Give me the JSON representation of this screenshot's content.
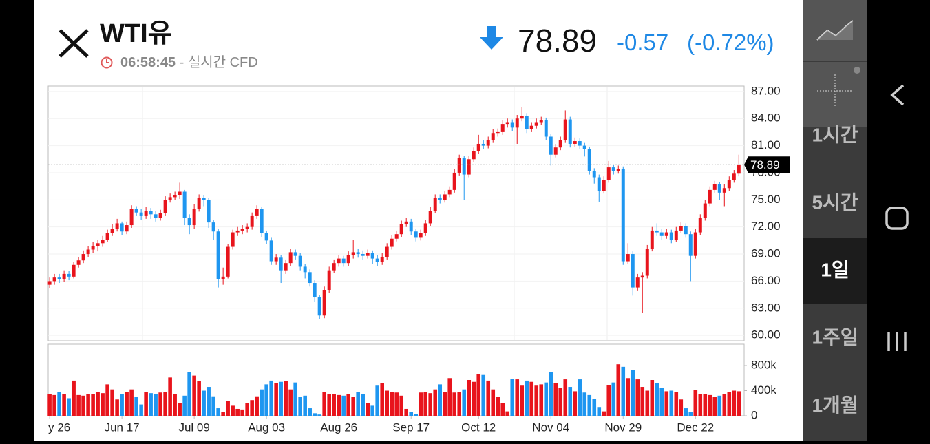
{
  "header": {
    "symbol": "WTI유",
    "time": "06:58:45",
    "session": "- 실시간 CFD",
    "price": "78.89",
    "change": "-0.57",
    "change_pct": "(-0.72%)"
  },
  "timeframes": [
    "1시간",
    "5시간",
    "1일",
    "1주일",
    "1개월"
  ],
  "selected_timeframe": 2,
  "chart_data": {
    "type": "candlestick",
    "up_color": "#e8141c",
    "down_color": "#1e96f0",
    "ylim": [
      59.4,
      87.6
    ],
    "yticks": [
      {
        "value": 60,
        "label": "60.00"
      },
      {
        "value": 63,
        "label": "63.00"
      },
      {
        "value": 66,
        "label": "66.00"
      },
      {
        "value": 69,
        "label": "69.00"
      },
      {
        "value": 72,
        "label": "72.00"
      },
      {
        "value": 75,
        "label": "75.00"
      },
      {
        "value": 78,
        "label": "78.00"
      },
      {
        "value": 81,
        "label": "81.00"
      },
      {
        "value": 84,
        "label": "84.00"
      },
      {
        "value": 87,
        "label": "87.00"
      }
    ],
    "xlim": [
      -0.3,
      144.1
    ],
    "xticks": [
      {
        "value": 0,
        "label": "y 26"
      },
      {
        "value": 15,
        "label": "Jun 17"
      },
      {
        "value": 30,
        "label": "Jul 09"
      },
      {
        "value": 45,
        "label": "Aug 03"
      },
      {
        "value": 60,
        "label": "Aug 26"
      },
      {
        "value": 75,
        "label": "Sep 17"
      },
      {
        "value": 89,
        "label": "Oct 12"
      },
      {
        "value": 104,
        "label": "Nov 04"
      },
      {
        "value": 119,
        "label": "Nov 29"
      },
      {
        "value": 134,
        "label": "Dec 22"
      }
    ],
    "open": [
      65.6,
      66.0,
      66.4,
      66.2,
      66.8,
      66.5,
      67.8,
      68.3,
      69.0,
      69.5,
      69.9,
      70.2,
      70.6,
      71.3,
      71.8,
      72.4,
      71.5,
      72.2,
      74.0,
      73.6,
      73.2,
      73.8,
      73.4,
      73.0,
      73.5,
      75.0,
      75.3,
      75.5,
      75.9,
      73.0,
      72.2,
      74.0,
      75.2,
      75.0,
      72.5,
      71.5,
      66.2,
      66.5,
      69.8,
      71.4,
      71.6,
      71.8,
      72.0,
      73.2,
      74.0,
      71.3,
      70.5,
      68.2,
      68.6,
      67.2,
      68.0,
      69.2,
      68.8,
      67.6,
      67.0,
      65.8,
      64.2,
      62.2,
      65.0,
      67.2,
      68.0,
      68.5,
      68.0,
      68.9,
      69.2,
      69.0,
      68.8,
      69.1,
      68.5,
      68.1,
      68.7,
      69.8,
      70.7,
      71.2,
      72.3,
      72.6,
      71.5,
      70.8,
      71.3,
      72.4,
      73.8,
      75.2,
      75.0,
      75.6,
      76.1,
      78.0,
      79.6,
      77.8,
      79.5,
      80.4,
      81.2,
      81.0,
      81.6,
      82.4,
      82.5,
      83.4,
      83.6,
      83.0,
      84.0,
      84.3,
      82.8,
      83.2,
      83.6,
      83.8,
      82.0,
      80.0,
      80.8,
      81.6,
      83.9,
      81.2,
      81.5,
      81.0,
      80.6,
      78.2,
      77.5,
      76.0,
      77.2,
      78.6,
      78.2,
      78.4,
      68.2,
      69.0,
      65.3,
      66.4,
      66.6,
      69.6,
      71.6,
      71.4,
      71.0,
      71.4,
      70.6,
      71.6,
      72.1,
      71.2,
      68.8,
      71.4,
      73.0,
      74.6,
      76.1,
      76.7,
      75.8,
      76.3,
      77.2,
      77.9
    ],
    "high": [
      66.4,
      66.8,
      66.8,
      67.2,
      67.1,
      68.1,
      68.7,
      69.4,
      69.9,
      70.3,
      70.6,
      71.0,
      71.7,
      72.3,
      72.9,
      72.6,
      72.6,
      74.4,
      74.3,
      74.0,
      74.2,
      74.1,
      73.8,
      73.9,
      75.4,
      75.7,
      75.9,
      76.9,
      76.1,
      73.4,
      74.5,
      75.6,
      75.5,
      75.2,
      72.8,
      71.8,
      67.5,
      70.1,
      71.7,
      72.0,
      72.2,
      72.4,
      73.6,
      74.4,
      74.2,
      71.6,
      70.8,
      69.0,
      68.9,
      68.4,
      69.6,
      69.5,
      69.1,
      67.9,
      67.3,
      66.1,
      64.5,
      65.4,
      67.6,
      68.4,
      68.9,
      68.8,
      69.3,
      70.6,
      69.6,
      69.4,
      69.5,
      69.4,
      68.9,
      69.1,
      70.2,
      71.1,
      71.6,
      72.7,
      73.0,
      72.9,
      71.8,
      71.7,
      72.8,
      74.2,
      75.6,
      75.6,
      76.0,
      76.5,
      78.4,
      80.0,
      79.9,
      79.9,
      80.8,
      82.2,
      81.6,
      82.0,
      82.8,
      82.9,
      83.8,
      84.0,
      83.9,
      84.4,
      85.3,
      84.6,
      83.6,
      84.0,
      84.2,
      84.1,
      82.3,
      81.2,
      82.0,
      84.9,
      84.2,
      81.9,
      81.8,
      81.3,
      80.9,
      78.5,
      77.8,
      77.6,
      79.3,
      78.9,
      78.8,
      78.7,
      70.2,
      69.3,
      66.8,
      67.0,
      70.0,
      72.0,
      72.4,
      71.8,
      71.8,
      71.7,
      72.0,
      72.5,
      72.4,
      71.5,
      71.8,
      73.4,
      75.0,
      76.5,
      77.1,
      77.0,
      76.7,
      77.6,
      78.3,
      80.0
    ],
    "low": [
      65.2,
      65.6,
      65.8,
      65.9,
      66.1,
      66.3,
      67.5,
      68.0,
      68.7,
      69.1,
      69.3,
      69.8,
      70.3,
      71.0,
      71.5,
      71.1,
      71.2,
      71.9,
      73.2,
      72.8,
      72.9,
      72.9,
      72.6,
      72.7,
      73.2,
      74.7,
      75.0,
      75.1,
      72.2,
      71.2,
      71.8,
      73.7,
      74.3,
      71.9,
      70.6,
      65.3,
      65.6,
      66.3,
      69.5,
      71.0,
      71.2,
      71.4,
      71.7,
      72.9,
      70.9,
      70.1,
      67.8,
      67.8,
      65.8,
      66.8,
      67.7,
      68.4,
      67.2,
      66.3,
      65.4,
      63.7,
      61.8,
      61.9,
      64.7,
      66.9,
      67.6,
      67.6,
      67.7,
      68.5,
      68.6,
      68.4,
      68.5,
      67.9,
      67.7,
      67.8,
      68.4,
      69.5,
      70.4,
      70.9,
      72.0,
      71.1,
      70.4,
      70.5,
      71.0,
      72.1,
      73.5,
      74.6,
      74.7,
      75.3,
      75.8,
      77.7,
      75.0,
      77.5,
      79.2,
      80.1,
      80.6,
      80.7,
      81.3,
      82.0,
      82.2,
      83.0,
      82.6,
      81.2,
      83.7,
      82.4,
      82.5,
      82.9,
      83.3,
      81.6,
      78.8,
      79.7,
      80.5,
      81.3,
      80.8,
      80.9,
      80.6,
      79.8,
      77.8,
      76.8,
      74.8,
      75.7,
      76.9,
      77.8,
      77.9,
      67.8,
      67.9,
      64.4,
      64.9,
      62.5,
      66.3,
      69.3,
      71.0,
      70.6,
      70.7,
      70.2,
      70.3,
      71.3,
      70.8,
      66.0,
      68.5,
      71.1,
      72.7,
      74.3,
      75.8,
      75.0,
      74.3,
      76.0,
      76.9,
      77.6
    ],
    "close": [
      66.0,
      66.4,
      66.2,
      66.8,
      66.5,
      67.8,
      68.3,
      69.0,
      69.5,
      69.9,
      70.2,
      70.6,
      71.3,
      71.8,
      72.4,
      71.5,
      72.2,
      74.0,
      73.6,
      73.2,
      73.8,
      73.4,
      73.0,
      73.5,
      75.0,
      75.3,
      75.5,
      75.9,
      73.0,
      72.2,
      74.0,
      75.2,
      75.0,
      72.5,
      71.5,
      66.2,
      66.5,
      69.8,
      71.4,
      71.6,
      71.8,
      72.0,
      73.2,
      74.0,
      71.3,
      70.5,
      68.2,
      68.6,
      67.2,
      68.0,
      69.2,
      68.8,
      67.6,
      67.0,
      65.8,
      64.2,
      62.2,
      65.0,
      67.2,
      68.0,
      68.5,
      68.0,
      68.9,
      69.2,
      69.0,
      68.8,
      69.1,
      68.5,
      68.1,
      68.7,
      69.8,
      70.7,
      71.2,
      72.3,
      72.6,
      71.5,
      70.8,
      71.3,
      72.4,
      73.8,
      75.2,
      75.0,
      75.6,
      76.1,
      78.0,
      79.6,
      77.8,
      79.5,
      80.4,
      81.2,
      81.0,
      81.6,
      82.4,
      82.5,
      83.4,
      83.6,
      83.0,
      84.0,
      84.3,
      82.8,
      83.2,
      83.6,
      83.8,
      82.0,
      80.0,
      80.8,
      81.6,
      83.9,
      81.2,
      81.5,
      81.0,
      80.6,
      78.2,
      77.5,
      76.0,
      77.2,
      78.6,
      78.2,
      78.4,
      68.2,
      69.0,
      65.3,
      66.4,
      66.6,
      69.6,
      71.6,
      71.4,
      71.0,
      71.4,
      70.6,
      71.6,
      72.1,
      71.2,
      68.8,
      71.4,
      73.0,
      74.6,
      76.1,
      76.7,
      75.8,
      76.3,
      77.2,
      77.9,
      78.89
    ],
    "volume": [
      350000,
      330000,
      380000,
      340000,
      280000,
      560000,
      330000,
      320000,
      350000,
      340000,
      380000,
      360000,
      500000,
      420000,
      260000,
      340000,
      380000,
      420000,
      300000,
      180000,
      380000,
      360000,
      350000,
      370000,
      380000,
      610000,
      350000,
      200000,
      320000,
      700000,
      640000,
      550000,
      400000,
      460000,
      310000,
      120000,
      60000,
      240000,
      160000,
      110000,
      100000,
      200000,
      250000,
      310000,
      420000,
      500000,
      560000,
      520000,
      540000,
      550000,
      420000,
      530000,
      300000,
      320000,
      120000,
      40000,
      20000,
      380000,
      350000,
      340000,
      330000,
      320000,
      350000,
      300000,
      380000,
      340000,
      200000,
      160000,
      480000,
      520000,
      400000,
      380000,
      370000,
      320000,
      110000,
      60000,
      30000,
      370000,
      380000,
      360000,
      420000,
      500000,
      380000,
      600000,
      370000,
      380000,
      420000,
      570000,
      540000,
      660000,
      650000,
      560000,
      420000,
      300000,
      200000,
      70000,
      590000,
      580000,
      480000,
      560000,
      540000,
      480000,
      500000,
      530000,
      700000,
      520000,
      440000,
      580000,
      460000,
      390000,
      580000,
      370000,
      330000,
      270000,
      140000,
      70000,
      490000,
      530000,
      820000,
      780000,
      600000,
      730000,
      580000,
      460000,
      400000,
      570000,
      520000,
      440000,
      390000,
      400000,
      380000,
      260000,
      120000,
      60000,
      410000,
      350000,
      340000,
      330000,
      300000,
      320000,
      350000,
      380000,
      400000,
      390000
    ],
    "volume_ylim": [
      0,
      1140000
    ],
    "volume_yticks": [
      {
        "value": 0,
        "label": "0"
      },
      {
        "value": 400000,
        "label": "400k"
      },
      {
        "value": 800000,
        "label": "800k"
      }
    ]
  }
}
